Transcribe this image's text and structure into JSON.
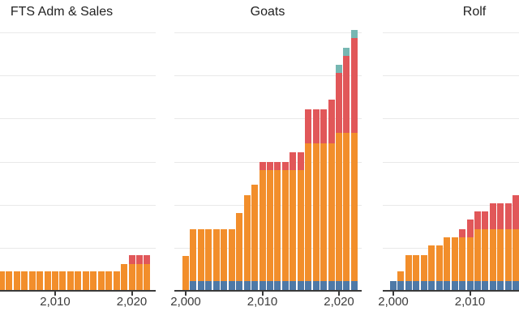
{
  "style": {
    "background": "#ffffff",
    "grid_color": "#e9e9e9",
    "axis_color": "#3a3a3a",
    "title_color": "#222222",
    "tick_label_color": "#3b3b3b",
    "series_colors": {
      "blue": "#4e79a7",
      "orange": "#f28e2b",
      "red": "#e15759",
      "teal": "#76b7b2"
    }
  },
  "chart_data": [
    {
      "type": "bar",
      "stacked": true,
      "title": "FTS Adm & Sales",
      "grid": true,
      "y_axis": "unlabeled, values in gridline intervals",
      "ylim": [
        0,
        6
      ],
      "x": [
        2003,
        2004,
        2005,
        2006,
        2007,
        2008,
        2009,
        2010,
        2011,
        2012,
        2013,
        2014,
        2015,
        2016,
        2017,
        2018,
        2019,
        2020,
        2021,
        2022
      ],
      "xticks": [
        {
          "year": 2010,
          "label": "2,010"
        },
        {
          "year": 2020,
          "label": "2,020"
        }
      ],
      "series": [
        {
          "name": "blue",
          "color": "#4e79a7",
          "values": [
            0,
            0,
            0,
            0,
            0,
            0,
            0,
            0,
            0,
            0,
            0,
            0,
            0,
            0,
            0,
            0,
            0,
            0,
            0,
            0
          ]
        },
        {
          "name": "orange",
          "color": "#f28e2b",
          "values": [
            0.43,
            0.43,
            0.43,
            0.43,
            0.43,
            0.43,
            0.43,
            0.43,
            0.43,
            0.43,
            0.43,
            0.43,
            0.43,
            0.43,
            0.43,
            0.43,
            0.6,
            0.6,
            0.6,
            0.6
          ]
        },
        {
          "name": "red",
          "color": "#e15759",
          "values": [
            0,
            0,
            0,
            0,
            0,
            0,
            0,
            0,
            0,
            0,
            0,
            0,
            0,
            0,
            0,
            0,
            0,
            0.21,
            0.21,
            0.21
          ]
        },
        {
          "name": "teal",
          "color": "#76b7b2",
          "values": [
            0,
            0,
            0,
            0,
            0,
            0,
            0,
            0,
            0,
            0,
            0,
            0,
            0,
            0,
            0,
            0,
            0,
            0,
            0,
            0
          ]
        }
      ],
      "layout": {
        "plot_x0": 0,
        "plot_x1": 192,
        "ref_year": 2010,
        "ref_x": 68,
        "title_cx": 76
      }
    },
    {
      "type": "bar",
      "stacked": true,
      "title": "Goats",
      "grid": true,
      "y_axis": "unlabeled, values in gridline intervals",
      "ylim": [
        0,
        6
      ],
      "x": [
        2000,
        2001,
        2002,
        2003,
        2004,
        2005,
        2006,
        2007,
        2008,
        2009,
        2010,
        2011,
        2012,
        2013,
        2014,
        2015,
        2016,
        2017,
        2018,
        2019,
        2020,
        2021,
        2022
      ],
      "xticks": [
        {
          "year": 2000,
          "label": "2,000"
        },
        {
          "year": 2010,
          "label": "2,010"
        },
        {
          "year": 2020,
          "label": "2,020"
        }
      ],
      "series": [
        {
          "name": "blue",
          "color": "#4e79a7",
          "values": [
            0,
            0.21,
            0.21,
            0.21,
            0.21,
            0.21,
            0.21,
            0.21,
            0.21,
            0.21,
            0.21,
            0.21,
            0.21,
            0.21,
            0.21,
            0.21,
            0.21,
            0.21,
            0.21,
            0.21,
            0.21,
            0.21,
            0.21
          ]
        },
        {
          "name": "orange",
          "color": "#f28e2b",
          "values": [
            0.79,
            1.2,
            1.2,
            1.2,
            1.2,
            1.2,
            1.2,
            1.57,
            1.98,
            2.23,
            2.57,
            2.57,
            2.57,
            2.57,
            2.57,
            2.57,
            3.18,
            3.18,
            3.18,
            3.18,
            3.42,
            3.42,
            3.42
          ]
        },
        {
          "name": "red",
          "color": "#e15759",
          "values": [
            0,
            0,
            0,
            0,
            0,
            0,
            0,
            0,
            0,
            0,
            0.19,
            0.19,
            0.19,
            0.19,
            0.41,
            0.41,
            0.8,
            0.8,
            0.8,
            1.02,
            1.4,
            1.78,
            2.2
          ]
        },
        {
          "name": "teal",
          "color": "#76b7b2",
          "values": [
            0,
            0,
            0,
            0,
            0,
            0,
            0,
            0,
            0,
            0,
            0,
            0,
            0,
            0,
            0,
            0,
            0,
            0,
            0,
            0,
            0.19,
            0.19,
            0.19
          ]
        }
      ],
      "layout": {
        "plot_x0": 215,
        "plot_x1": 446,
        "ref_year": 2010,
        "ref_x": 323.5,
        "title_cx": 330
      }
    },
    {
      "type": "bar",
      "stacked": true,
      "title": "Rolf",
      "grid": true,
      "y_axis": "unlabeled, values in gridline intervals",
      "ylim": [
        0,
        6
      ],
      "x": [
        2000,
        2001,
        2002,
        2003,
        2004,
        2005,
        2006,
        2007,
        2008,
        2009,
        2010,
        2011,
        2012,
        2013,
        2014,
        2015,
        2016
      ],
      "xticks": [
        {
          "year": 2000,
          "label": "2,000"
        },
        {
          "year": 2010,
          "label": "2,010"
        }
      ],
      "series": [
        {
          "name": "blue",
          "color": "#4e79a7",
          "values": [
            0.21,
            0.21,
            0.21,
            0.21,
            0.21,
            0.21,
            0.21,
            0.21,
            0.21,
            0.21,
            0.21,
            0.21,
            0.21,
            0.21,
            0.21,
            0.21,
            0.21
          ]
        },
        {
          "name": "orange",
          "color": "#f28e2b",
          "values": [
            0,
            0.22,
            0.6,
            0.6,
            0.6,
            0.83,
            0.83,
            1.0,
            1.0,
            1.01,
            1.01,
            1.2,
            1.2,
            1.2,
            1.2,
            1.2,
            1.2
          ]
        },
        {
          "name": "red",
          "color": "#e15759",
          "values": [
            0,
            0,
            0,
            0,
            0,
            0,
            0,
            0,
            0,
            0.19,
            0.42,
            0.41,
            0.41,
            0.59,
            0.59,
            0.59,
            0.79
          ]
        },
        {
          "name": "teal",
          "color": "#76b7b2",
          "values": [
            0,
            0,
            0,
            0,
            0,
            0,
            0,
            0,
            0,
            0,
            0,
            0,
            0,
            0,
            0,
            0,
            0
          ]
        }
      ],
      "layout": {
        "plot_x0": 472,
        "plot_x1": 640,
        "ref_year": 2010,
        "ref_x": 579.5,
        "title_cx": 585
      }
    }
  ]
}
